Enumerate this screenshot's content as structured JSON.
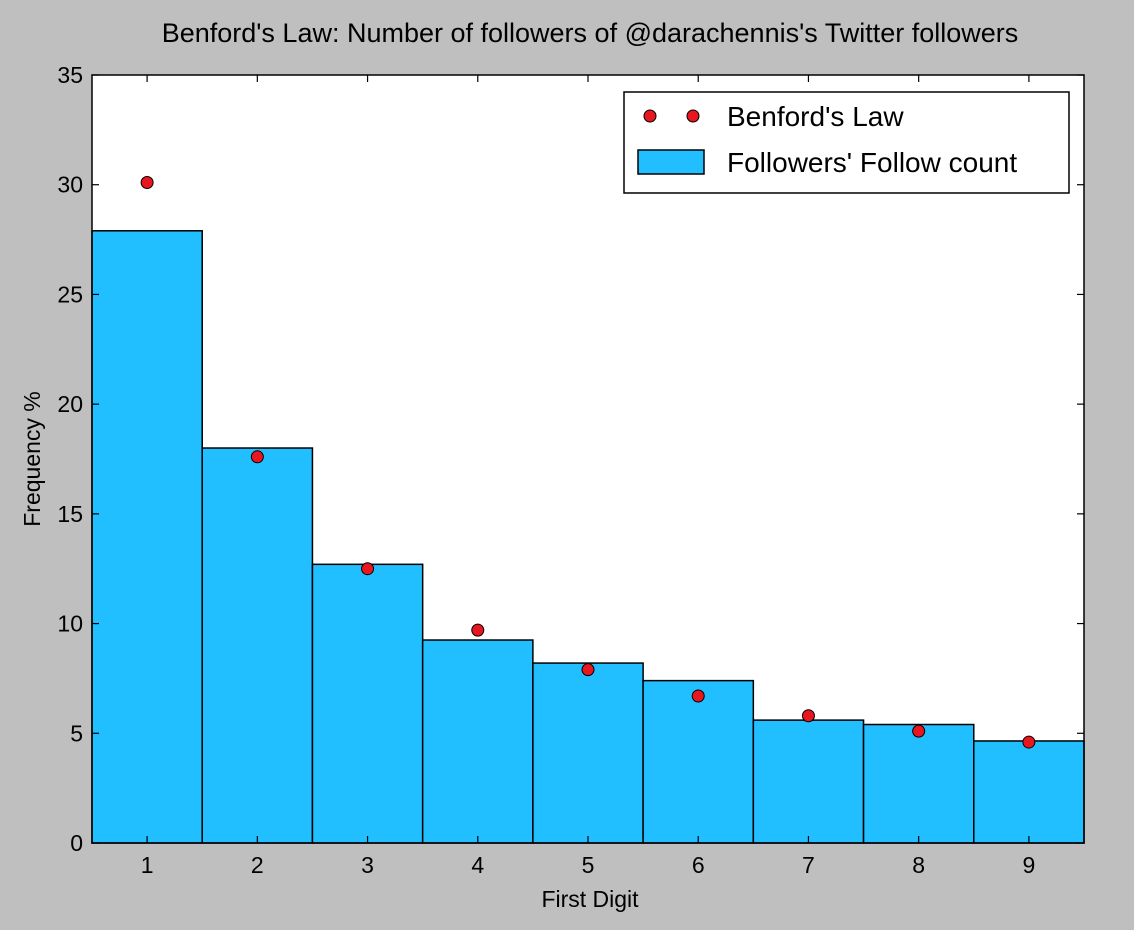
{
  "chart_data": {
    "type": "bar",
    "title": "Benford's Law: Number of followers of  @darachennis's Twitter followers",
    "xlabel": "First Digit",
    "ylabel": "Frequency %",
    "categories": [
      "1",
      "2",
      "3",
      "4",
      "5",
      "6",
      "7",
      "8",
      "9"
    ],
    "xlim": [
      0.5,
      9.5
    ],
    "ylim": [
      0,
      35
    ],
    "yticks": [
      "0",
      "5",
      "10",
      "15",
      "20",
      "25",
      "30",
      "35"
    ],
    "grid": false,
    "legend_position": "top-right",
    "series": [
      {
        "name": "Followers' Follow count",
        "kind": "bar",
        "color": "#21bfff",
        "values": [
          27.9,
          18.0,
          12.7,
          9.25,
          8.2,
          7.4,
          5.6,
          5.4,
          4.65
        ]
      },
      {
        "name": "Benford's Law",
        "kind": "marker",
        "color": "#e8161e",
        "values": [
          30.1,
          17.6,
          12.5,
          9.7,
          7.9,
          6.7,
          5.8,
          5.1,
          4.6
        ]
      }
    ]
  }
}
